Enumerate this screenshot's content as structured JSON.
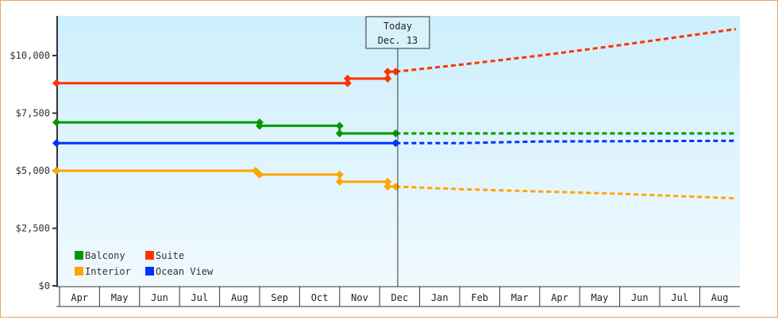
{
  "chart_data": {
    "type": "line",
    "title": "",
    "xlabel": "",
    "ylabel": "",
    "ylim": [
      0,
      11500
    ],
    "y_ticks": [
      {
        "value": 0,
        "label": "$0"
      },
      {
        "value": 2500,
        "label": "$2,500"
      },
      {
        "value": 5000,
        "label": "$5,000"
      },
      {
        "value": 7500,
        "label": "$7,500"
      },
      {
        "value": 10000,
        "label": "$10,000"
      }
    ],
    "categories": [
      "Apr",
      "May",
      "Jun",
      "Jul",
      "Aug",
      "Sep",
      "Oct",
      "Nov",
      "Dec",
      "Jan",
      "Feb",
      "Mar",
      "Apr",
      "May",
      "Jun",
      "Jul",
      "Aug"
    ],
    "today_marker": {
      "line1": "Today",
      "line2": "Dec. 13"
    },
    "legend": [
      {
        "name": "Balcony",
        "color": "#009900"
      },
      {
        "name": "Suite",
        "color": "#ff3300"
      },
      {
        "name": "Interior",
        "color": "#ffa500"
      },
      {
        "name": "Ocean View",
        "color": "#0033ff"
      }
    ],
    "series": [
      {
        "name": "Suite",
        "color": "#ff3300",
        "history": [
          [
            0,
            8800
          ],
          [
            5,
            8800
          ],
          [
            7.2,
            8800
          ],
          [
            7.2,
            9000
          ],
          [
            8.2,
            9000
          ],
          [
            8.2,
            9300
          ],
          [
            8.4,
            9300
          ]
        ],
        "forecast": [
          [
            8.4,
            9300
          ],
          [
            10,
            9600
          ],
          [
            12,
            10000
          ],
          [
            14,
            10450
          ],
          [
            16.9,
            11150
          ]
        ]
      },
      {
        "name": "Balcony",
        "color": "#009900",
        "history": [
          [
            0,
            7100
          ],
          [
            5,
            7100
          ],
          [
            5,
            6950
          ],
          [
            7,
            6950
          ],
          [
            7,
            6620
          ],
          [
            8.4,
            6620
          ]
        ],
        "forecast": [
          [
            8.4,
            6620
          ],
          [
            16.9,
            6620
          ]
        ]
      },
      {
        "name": "Ocean View",
        "color": "#0033ff",
        "history": [
          [
            0,
            6200
          ],
          [
            5,
            6200
          ],
          [
            8.4,
            6200
          ]
        ],
        "forecast": [
          [
            8.4,
            6200
          ],
          [
            10,
            6200
          ],
          [
            12,
            6270
          ],
          [
            16.9,
            6300
          ]
        ]
      },
      {
        "name": "Interior",
        "color": "#ffa500",
        "history": [
          [
            0,
            5000
          ],
          [
            4.9,
            5000
          ],
          [
            5,
            4830
          ],
          [
            7,
            4830
          ],
          [
            7,
            4520
          ],
          [
            8.2,
            4520
          ],
          [
            8.2,
            4310
          ],
          [
            8.4,
            4310
          ]
        ],
        "forecast": [
          [
            8.4,
            4310
          ],
          [
            10,
            4200
          ],
          [
            12,
            4100
          ],
          [
            14,
            4000
          ],
          [
            16.9,
            3800
          ]
        ]
      }
    ]
  }
}
